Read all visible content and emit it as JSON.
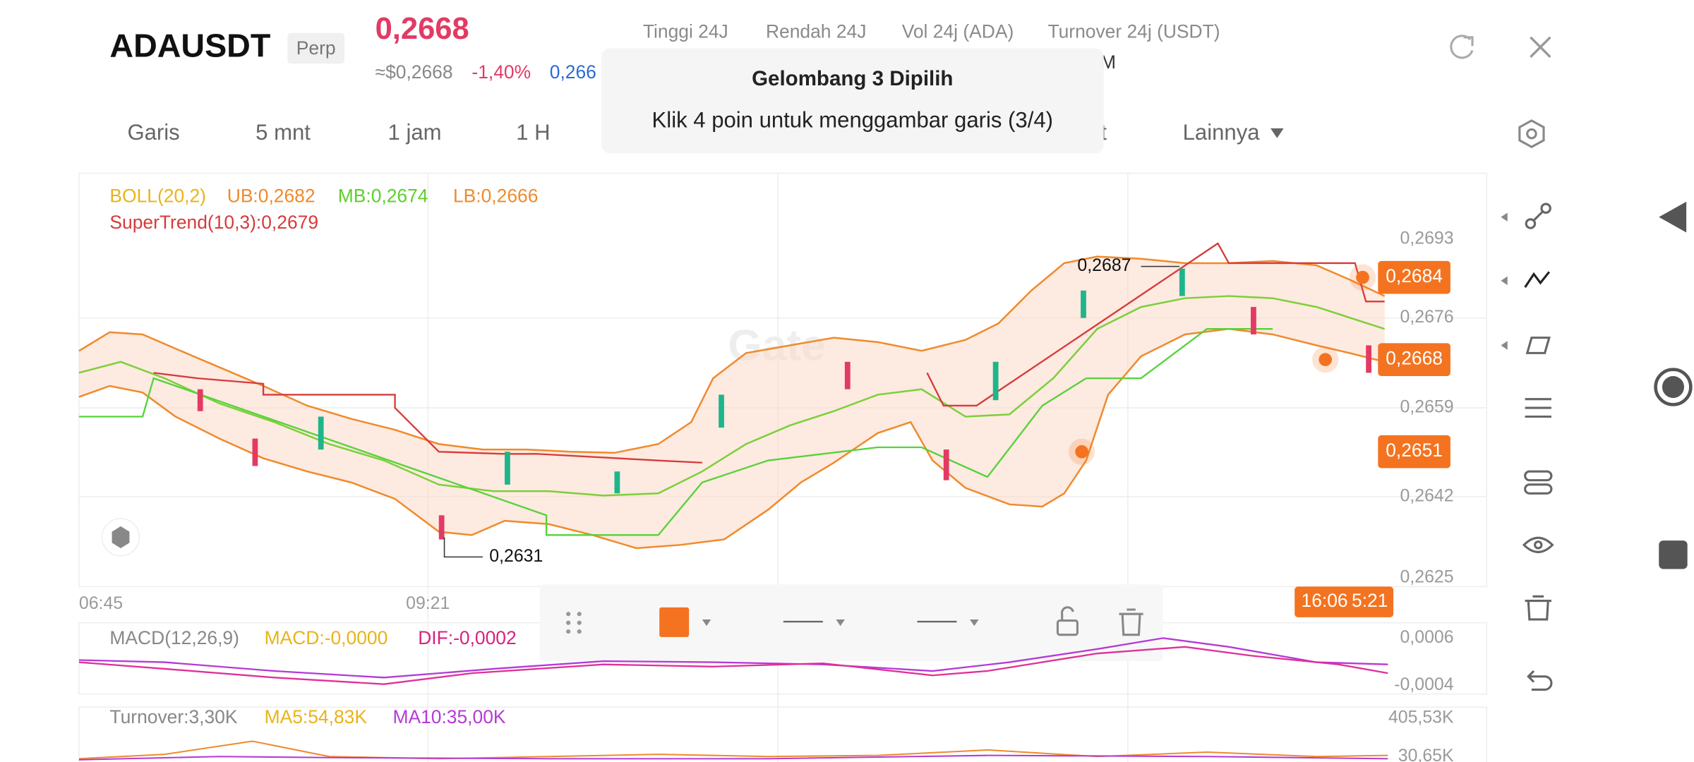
{
  "header": {
    "symbol": "ADAUSDT",
    "badge": "Perp",
    "price": "0,2668",
    "usd_price": "≈$0,2668",
    "change": "-1,40%",
    "index_price": "0,266",
    "stats": [
      "Tinggi 24J",
      "Rendah 24J",
      "Vol 24j (ADA)",
      "Turnover 24j (USDT)"
    ],
    "stat_value_partial": "M"
  },
  "toast": {
    "title": "Gelombang 3 Dipilih",
    "message": "Klik 4 poin untuk menggambar garis (3/4)"
  },
  "tabs": [
    "Garis",
    "5 mnt",
    "1 jam",
    "1 H",
    "t",
    "Lainnya"
  ],
  "main_chart": {
    "indicators": {
      "boll": "BOLL(20,2)",
      "ub": "UB:0,2682",
      "mb": "MB:0,2674",
      "lb": "LB:0,2666",
      "supertrend": "SuperTrend(10,3):0,2679"
    },
    "price_ticks": [
      "0,2693",
      "0,2676",
      "0,2659",
      "0,2642",
      "0,2625"
    ],
    "high_label": "0,2687",
    "low_label": "0,2631",
    "price_tags": [
      "0,2684",
      "0,2668",
      "0,2651"
    ],
    "time_ticks": [
      "06:45",
      "09:21"
    ],
    "time_tag": "16:06",
    "countdown_partial": "5:21",
    "watermark": "Gate"
  },
  "macd": {
    "title": "MACD(12,26,9)",
    "macd": "MACD:-0,0000",
    "dif": "DIF:-0,0002",
    "ticks": [
      "0,0006",
      "-0,0004"
    ]
  },
  "turnover": {
    "title": "Turnover:3,30K",
    "ma5": "MA5:54,83K",
    "ma10": "MA10:35,00K",
    "ticks": [
      "405,53K",
      "30,65K"
    ]
  }
}
